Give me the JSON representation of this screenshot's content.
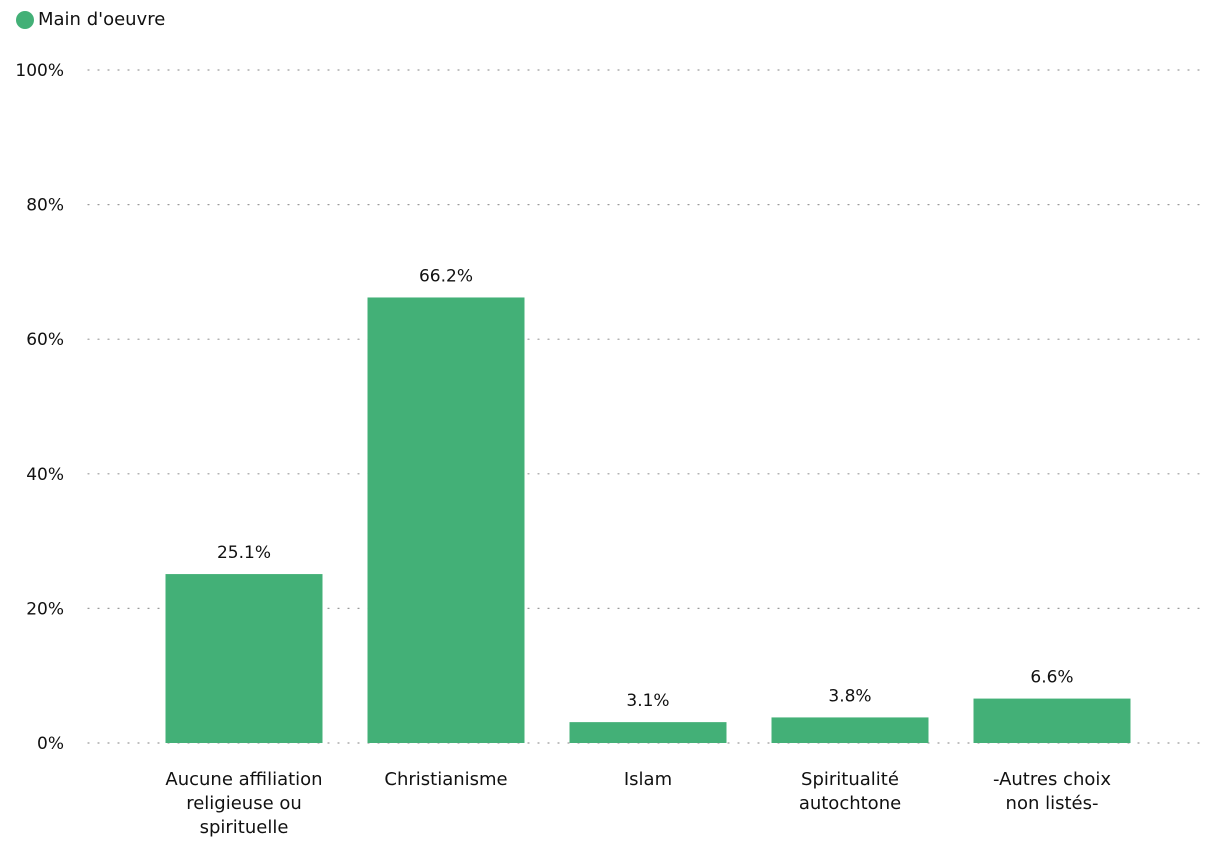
{
  "chart_data": {
    "type": "bar",
    "categories": [
      [
        "Aucune affiliation",
        "religieuse ou",
        "spirituelle"
      ],
      [
        "Christianisme"
      ],
      [
        "Islam"
      ],
      [
        "Spiritualité",
        "autochtone"
      ],
      [
        "-Autres choix",
        "non listés-"
      ]
    ],
    "series": [
      {
        "name": "Main d'oeuvre",
        "values": [
          25.1,
          66.2,
          3.1,
          3.8,
          6.6
        ],
        "color": "#43b077"
      }
    ],
    "data_labels": [
      "25.1%",
      "66.2%",
      "3.1%",
      "3.8%",
      "6.6%"
    ],
    "ylim": [
      0,
      100
    ],
    "yticks": [
      0,
      20,
      40,
      60,
      80,
      100
    ],
    "ytick_labels": [
      "0%",
      "20%",
      "40%",
      "60%",
      "80%",
      "100%"
    ],
    "grid": true,
    "legend_position": "top-left"
  }
}
